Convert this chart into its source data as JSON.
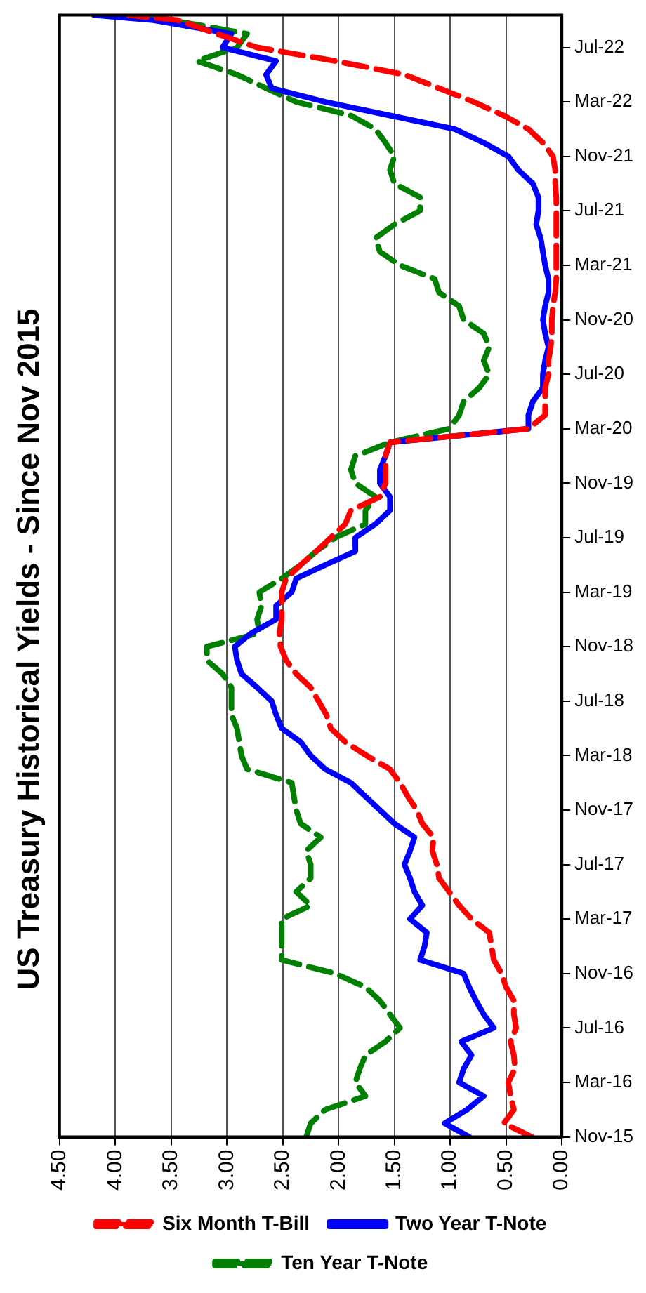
{
  "chart_data": {
    "type": "line",
    "title": "US Treasury Historical Yields - Since Nov 2015",
    "x": [
      "2015-11",
      "2015-12",
      "2016-01",
      "2016-02",
      "2016-03",
      "2016-04",
      "2016-05",
      "2016-06",
      "2016-07",
      "2016-08",
      "2016-09",
      "2016-10",
      "2016-11",
      "2016-12",
      "2017-01",
      "2017-02",
      "2017-03",
      "2017-04",
      "2017-05",
      "2017-06",
      "2017-07",
      "2017-08",
      "2017-09",
      "2017-10",
      "2017-11",
      "2017-12",
      "2018-01",
      "2018-02",
      "2018-03",
      "2018-04",
      "2018-05",
      "2018-06",
      "2018-07",
      "2018-08",
      "2018-09",
      "2018-10",
      "2018-11",
      "2018-12",
      "2019-01",
      "2019-02",
      "2019-03",
      "2019-04",
      "2019-05",
      "2019-06",
      "2019-07",
      "2019-08",
      "2019-09",
      "2019-10",
      "2019-11",
      "2019-12",
      "2020-01",
      "2020-02",
      "2020-03",
      "2020-04",
      "2020-05",
      "2020-06",
      "2020-07",
      "2020-08",
      "2020-09",
      "2020-10",
      "2020-11",
      "2020-12",
      "2021-01",
      "2021-02",
      "2021-03",
      "2021-04",
      "2021-05",
      "2021-06",
      "2021-07",
      "2021-08",
      "2021-09",
      "2021-10",
      "2021-11",
      "2021-12",
      "2022-01",
      "2022-02",
      "2022-03",
      "2022-04",
      "2022-05",
      "2022-06",
      "2022-07",
      "2022-08",
      "2022-09",
      "2022-09-12"
    ],
    "series": [
      {
        "name": "Six Month T-Bill",
        "color": "#ff0000",
        "line_style": "dashed",
        "values": [
          0.27,
          0.52,
          0.43,
          0.46,
          0.48,
          0.42,
          0.43,
          0.46,
          0.41,
          0.43,
          0.43,
          0.5,
          0.54,
          0.61,
          0.63,
          0.65,
          0.81,
          0.92,
          1.01,
          1.1,
          1.12,
          1.16,
          1.15,
          1.25,
          1.3,
          1.38,
          1.45,
          1.54,
          1.75,
          1.94,
          2.07,
          2.11,
          2.18,
          2.25,
          2.38,
          2.47,
          2.52,
          2.53,
          2.51,
          2.51,
          2.51,
          2.47,
          2.34,
          2.2,
          2.07,
          1.94,
          1.89,
          1.63,
          1.58,
          1.58,
          1.58,
          1.54,
          0.3,
          0.15,
          0.15,
          0.15,
          0.12,
          0.12,
          0.1,
          0.09,
          0.09,
          0.08,
          0.06,
          0.05,
          0.05,
          0.05,
          0.05,
          0.05,
          0.05,
          0.05,
          0.06,
          0.06,
          0.08,
          0.17,
          0.3,
          0.52,
          0.79,
          1.1,
          1.41,
          2.03,
          2.73,
          3.09,
          3.44,
          3.88
        ]
      },
      {
        "name": "Two Year T-Note",
        "color": "#0000ff",
        "line_style": "solid",
        "values": [
          0.83,
          1.05,
          0.85,
          0.7,
          0.92,
          0.88,
          0.81,
          0.9,
          0.61,
          0.7,
          0.77,
          0.83,
          0.88,
          1.27,
          1.23,
          1.21,
          1.36,
          1.25,
          1.32,
          1.36,
          1.41,
          1.36,
          1.32,
          1.5,
          1.63,
          1.76,
          1.89,
          2.12,
          2.25,
          2.34,
          2.51,
          2.56,
          2.6,
          2.73,
          2.87,
          2.91,
          2.93,
          2.78,
          2.56,
          2.56,
          2.42,
          2.38,
          2.12,
          1.85,
          1.85,
          1.67,
          1.54,
          1.54,
          1.63,
          1.63,
          1.58,
          1.54,
          0.3,
          0.3,
          0.26,
          0.17,
          0.17,
          0.15,
          0.12,
          0.15,
          0.17,
          0.15,
          0.12,
          0.12,
          0.15,
          0.17,
          0.19,
          0.23,
          0.21,
          0.21,
          0.26,
          0.39,
          0.48,
          0.7,
          0.96,
          1.54,
          2.12,
          2.6,
          2.65,
          2.56,
          3.04,
          2.96,
          3.66,
          4.19
        ]
      },
      {
        "name": "Ten Year T-Note",
        "color": "#008000",
        "line_style": "dashed",
        "values": [
          2.29,
          2.25,
          2.12,
          1.76,
          1.85,
          1.81,
          1.76,
          1.58,
          1.45,
          1.54,
          1.63,
          1.76,
          2.03,
          2.51,
          2.51,
          2.51,
          2.51,
          2.25,
          2.38,
          2.25,
          2.25,
          2.29,
          2.16,
          2.34,
          2.38,
          2.4,
          2.42,
          2.82,
          2.87,
          2.89,
          2.91,
          2.96,
          2.96,
          2.96,
          3.04,
          3.18,
          3.18,
          2.71,
          2.73,
          2.69,
          2.71,
          2.51,
          2.34,
          2.2,
          2.03,
          1.76,
          1.76,
          1.67,
          1.85,
          1.89,
          1.85,
          1.54,
          1.01,
          0.92,
          0.88,
          0.74,
          0.65,
          0.7,
          0.65,
          0.7,
          0.88,
          0.92,
          1.1,
          1.14,
          1.45,
          1.63,
          1.67,
          1.5,
          1.27,
          1.27,
          1.5,
          1.54,
          1.5,
          1.58,
          1.67,
          1.89,
          2.38,
          2.65,
          2.91,
          3.27,
          2.91,
          2.82,
          3.5,
          3.84
        ]
      }
    ],
    "orientation": "horizontal",
    "ylim": [
      "2015-11",
      "2022-09-12"
    ],
    "yticks": [
      {
        "value": "2015-11",
        "label": "Nov-15"
      },
      {
        "value": "2016-03",
        "label": "Mar-16"
      },
      {
        "value": "2016-07",
        "label": "Jul-16"
      },
      {
        "value": "2016-11",
        "label": "Nov-16"
      },
      {
        "value": "2017-03",
        "label": "Mar-17"
      },
      {
        "value": "2017-07",
        "label": "Jul-17"
      },
      {
        "value": "2017-11",
        "label": "Nov-17"
      },
      {
        "value": "2018-03",
        "label": "Mar-18"
      },
      {
        "value": "2018-07",
        "label": "Jul-18"
      },
      {
        "value": "2018-11",
        "label": "Nov-18"
      },
      {
        "value": "2019-03",
        "label": "Mar-19"
      },
      {
        "value": "2019-07",
        "label": "Jul-19"
      },
      {
        "value": "2019-11",
        "label": "Nov-19"
      },
      {
        "value": "2020-03",
        "label": "Mar-20"
      },
      {
        "value": "2020-07",
        "label": "Jul-20"
      },
      {
        "value": "2020-11",
        "label": "Nov-20"
      },
      {
        "value": "2021-03",
        "label": "Mar-21"
      },
      {
        "value": "2021-07",
        "label": "Jul-21"
      },
      {
        "value": "2021-11",
        "label": "Nov-21"
      },
      {
        "value": "2022-03",
        "label": "Mar-22"
      },
      {
        "value": "2022-07",
        "label": "Jul-22"
      }
    ],
    "xlim": [
      4.5,
      0
    ],
    "xticks": [
      {
        "value": 0,
        "label": "0.00"
      },
      {
        "value": 0.5,
        "label": "0.50"
      },
      {
        "value": 1,
        "label": "1.00"
      },
      {
        "value": 1.5,
        "label": "1.50"
      },
      {
        "value": 2,
        "label": "2.00"
      },
      {
        "value": 2.5,
        "label": "2.50"
      },
      {
        "value": 3,
        "label": "3.00"
      },
      {
        "value": 3.5,
        "label": "3.50"
      },
      {
        "value": 4,
        "label": "4.00"
      },
      {
        "value": 4.5,
        "label": "4.50"
      }
    ],
    "grid": "x",
    "legend": "bottom",
    "marker": "none"
  }
}
